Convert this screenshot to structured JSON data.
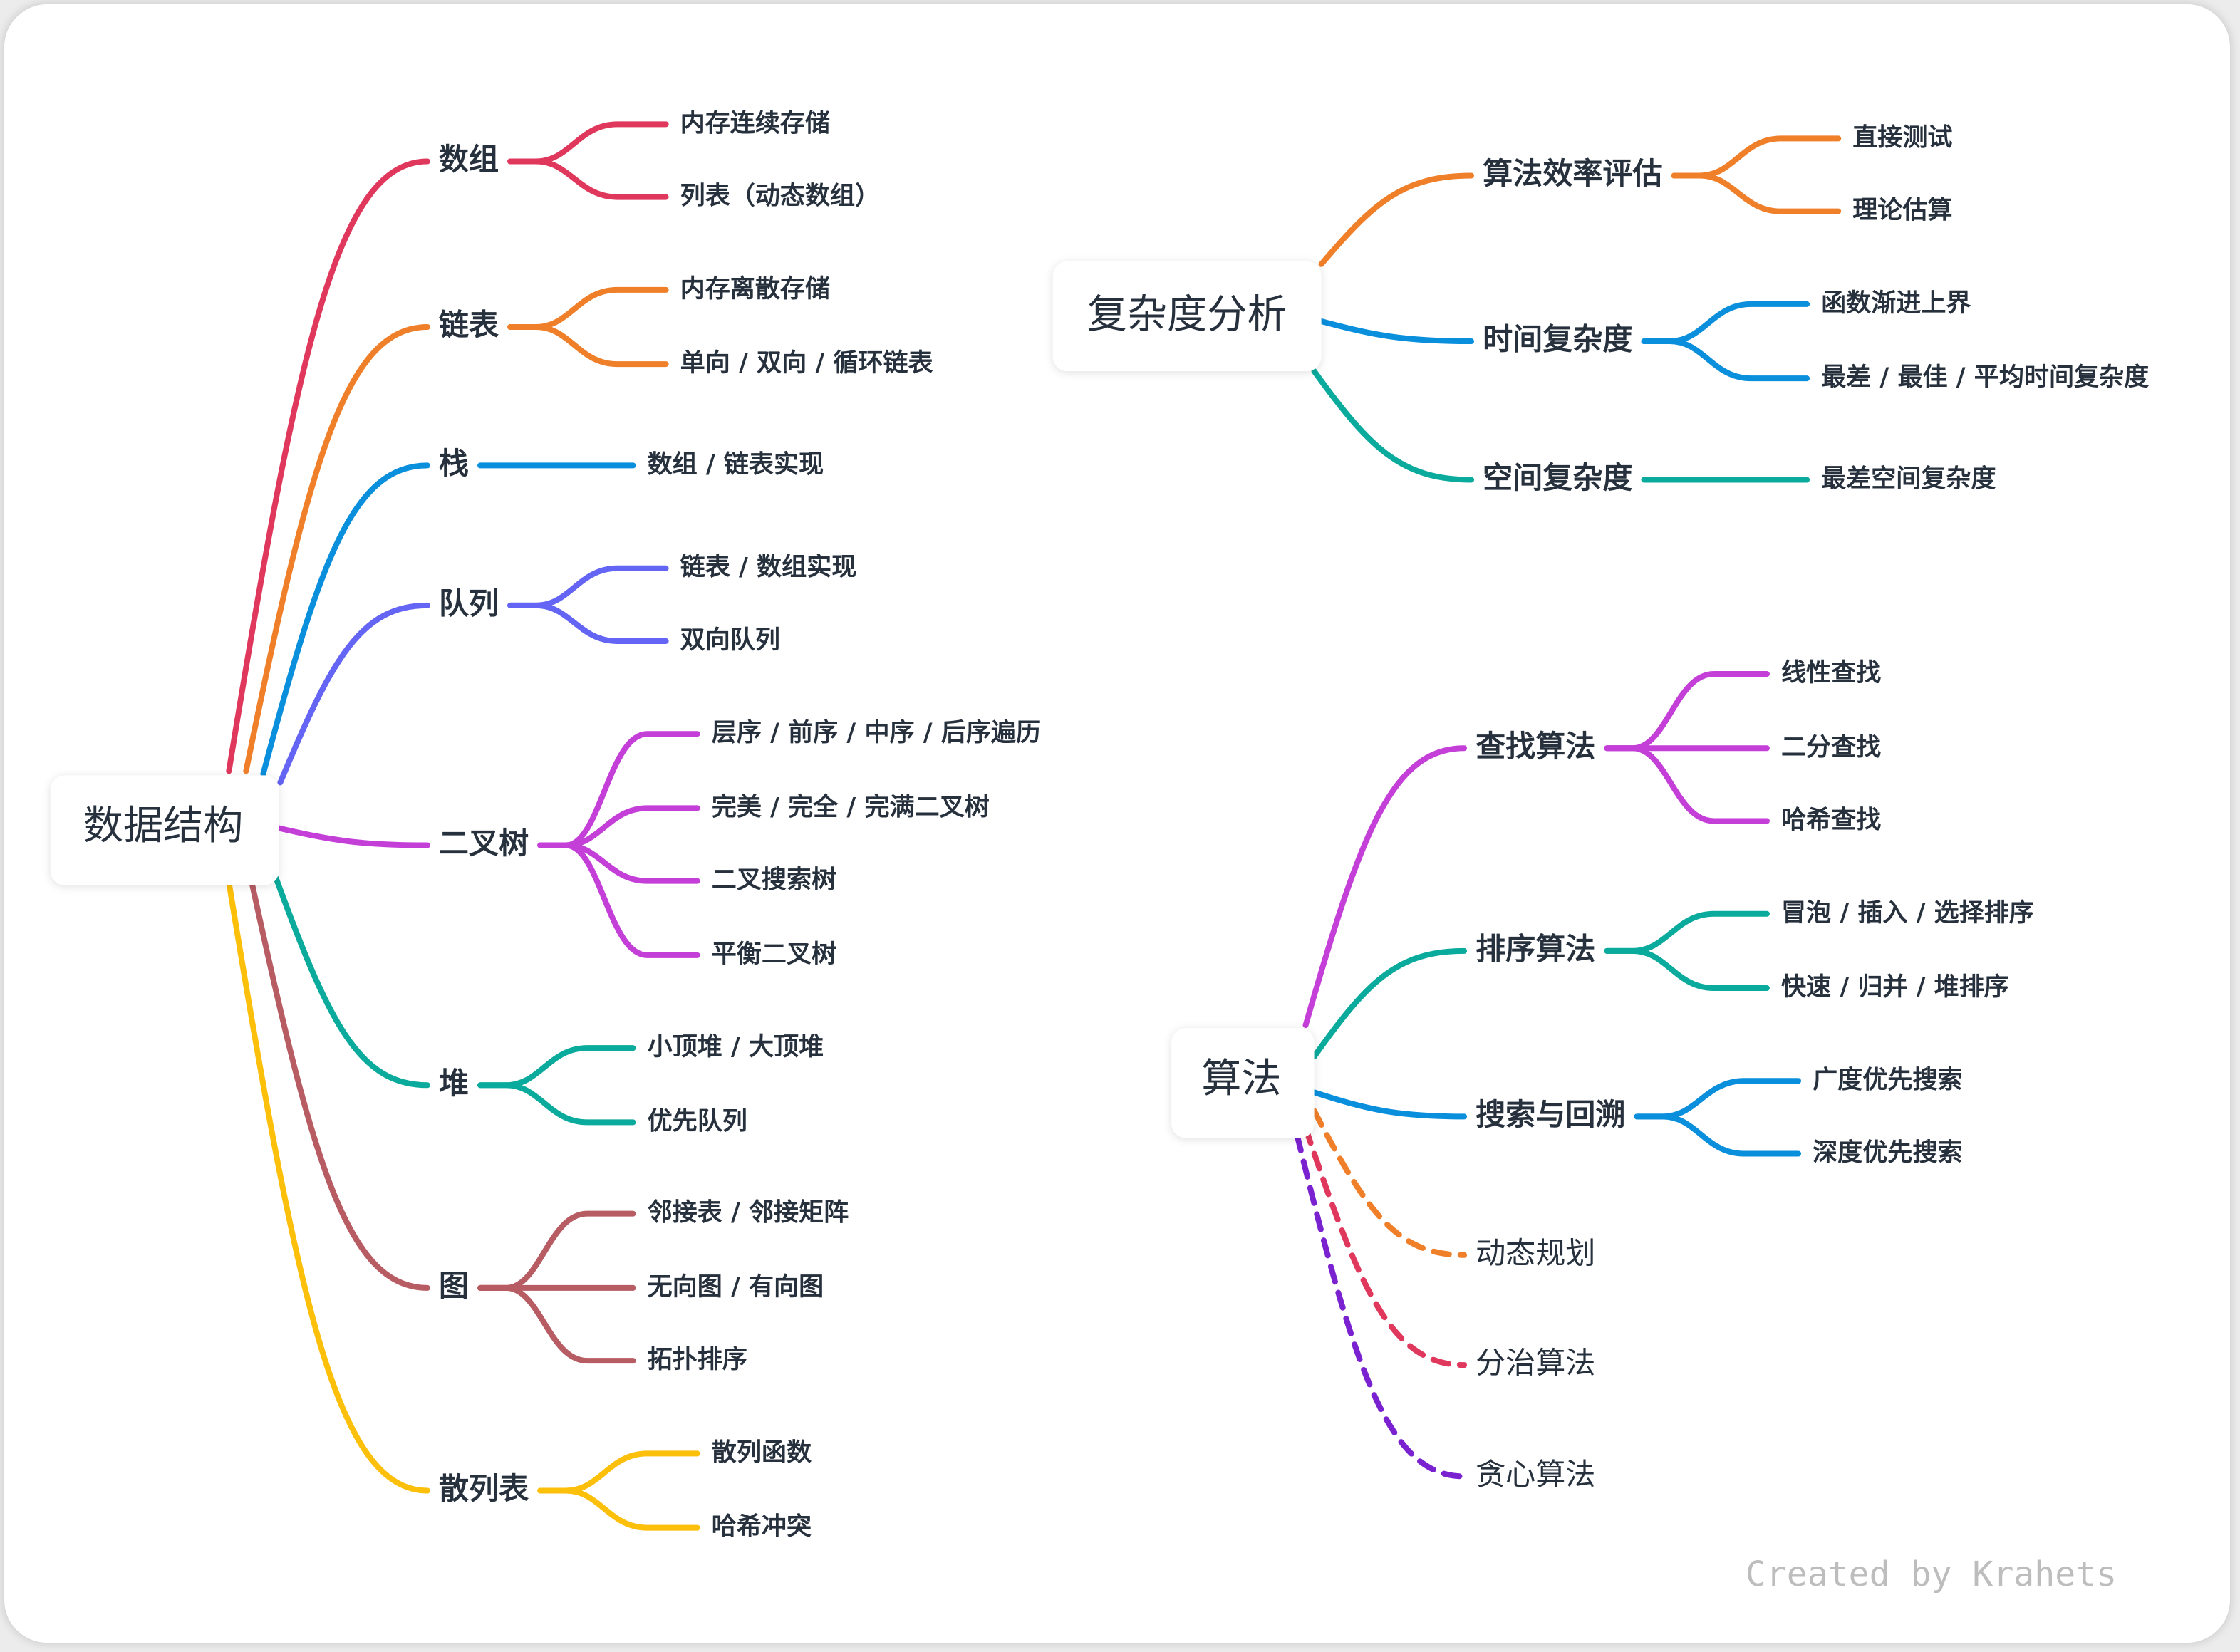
{
  "mindmaps": [
    {
      "root": "数据结构",
      "branches": [
        {
          "label": "数组",
          "color": "#e0385c",
          "children": [
            "内存连续存储",
            "列表（动态数组）"
          ]
        },
        {
          "label": "链表",
          "color": "#f07f2a",
          "children": [
            "内存离散存储",
            "单向 / 双向 / 循环链表"
          ]
        },
        {
          "label": "栈",
          "color": "#0a8fdc",
          "children": [
            "数组 / 链表实现"
          ]
        },
        {
          "label": "队列",
          "color": "#6464f5",
          "children": [
            "链表 / 数组实现",
            "双向队列"
          ]
        },
        {
          "label": "二叉树",
          "color": "#c43ed8",
          "children": [
            "层序 / 前序 / 中序 / 后序遍历",
            "完美 / 完全 / 完满二叉树",
            "二叉搜索树",
            "平衡二叉树"
          ]
        },
        {
          "label": "堆",
          "color": "#0aab9c",
          "children": [
            "小顶堆 / 大顶堆",
            "优先队列"
          ]
        },
        {
          "label": "图",
          "color": "#b85c64",
          "children": [
            "邻接表 / 邻接矩阵",
            "无向图 / 有向图",
            "拓扑排序"
          ]
        },
        {
          "label": "散列表",
          "color": "#fcbf0a",
          "children": [
            "散列函数",
            "哈希冲突"
          ]
        }
      ]
    },
    {
      "root": "复杂度分析",
      "branches": [
        {
          "label": "算法效率评估",
          "color": "#f07f2a",
          "children": [
            "直接测试",
            "理论估算"
          ]
        },
        {
          "label": "时间复杂度",
          "color": "#0a8fdc",
          "children": [
            "函数渐进上界",
            "最差 / 最佳 / 平均时间复杂度"
          ]
        },
        {
          "label": "空间复杂度",
          "color": "#0aab9c",
          "children": [
            "最差空间复杂度"
          ]
        }
      ]
    },
    {
      "root": "算法",
      "branches": [
        {
          "label": "查找算法",
          "color": "#c43ed8",
          "children": [
            "线性查找",
            "二分查找",
            "哈希查找"
          ]
        },
        {
          "label": "排序算法",
          "color": "#0aab9c",
          "children": [
            "冒泡 / 插入 / 选择排序",
            "快速 / 归并 / 堆排序"
          ]
        },
        {
          "label": "搜索与回溯",
          "color": "#0a8fdc",
          "children": [
            "广度优先搜索",
            "深度优先搜索"
          ]
        },
        {
          "label": "动态规划",
          "color": "#f07f2a",
          "dashed": true,
          "children": []
        },
        {
          "label": "分治算法",
          "color": "#e0385c",
          "dashed": true,
          "children": []
        },
        {
          "label": "贪心算法",
          "color": "#7a22d0",
          "dashed": true,
          "children": []
        }
      ]
    }
  ],
  "watermark": "Created by Krahets"
}
